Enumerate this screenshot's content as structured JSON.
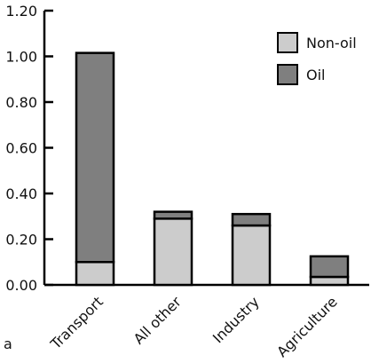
{
  "panel_label": "a",
  "chart_data": {
    "type": "bar",
    "stacked": true,
    "categories": [
      "Transport",
      "All other",
      "Industry",
      "Agriculture"
    ],
    "series": [
      {
        "name": "Non-oil",
        "values": [
          0.1,
          0.29,
          0.26,
          0.035
        ],
        "color": "#cccccc"
      },
      {
        "name": "Oil",
        "values": [
          0.915,
          0.03,
          0.05,
          0.09
        ],
        "color": "#7f7f7f"
      }
    ],
    "legend_order": [
      "Non-oil",
      "Oil"
    ],
    "ylim": [
      0,
      1.2
    ],
    "yticks": [
      "0.00",
      "0.20",
      "0.40",
      "0.60",
      "0.80",
      "1.00",
      "1.20"
    ],
    "legend_position": "top-right",
    "grid": false
  }
}
